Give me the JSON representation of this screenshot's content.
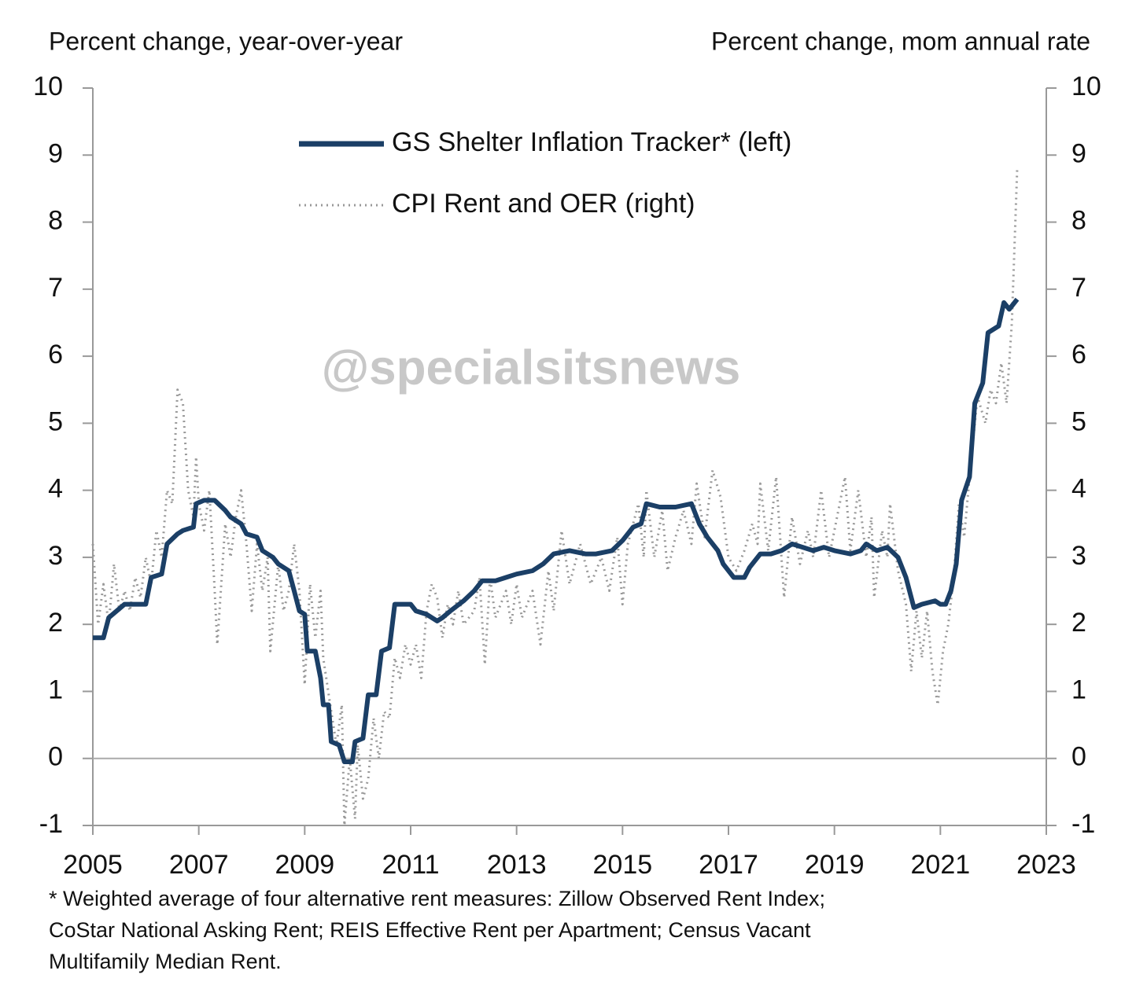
{
  "chart_data": {
    "type": "line",
    "y_label": "Percent change, year-over-year",
    "y2_label": "Percent change, mom annual rate",
    "annotation": "@specialsitsnews",
    "footnote": [
      "* Weighted  average of four alternative  rent measures: Zillow Observed Rent  Index;",
      "CoStar National  Asking Rent;  REIS  Effective Rent per Apartment;  Census Vacant",
      "Multifamily  Median  Rent."
    ],
    "xlim": [
      2005,
      2023
    ],
    "xticks": [
      2005,
      2007,
      2009,
      2011,
      2013,
      2015,
      2017,
      2019,
      2021,
      2023
    ],
    "ylim": [
      -1,
      10
    ],
    "yticks": [
      -1,
      0,
      1,
      2,
      3,
      4,
      5,
      6,
      7,
      8,
      9,
      10
    ],
    "y2lim": [
      -1,
      10
    ],
    "y2ticks": [
      -1,
      0,
      1,
      2,
      3,
      4,
      5,
      6,
      7,
      8,
      9,
      10
    ],
    "legend": "top",
    "series": [
      {
        "name": "GS Shelter Inflation Tracker* (left)",
        "color": "#1b3f66",
        "axis": "y",
        "x": [
          2005.0,
          2005.2,
          2005.3,
          2005.6,
          2005.9,
          2006.0,
          2006.1,
          2006.3,
          2006.4,
          2006.6,
          2006.7,
          2006.9,
          2006.95,
          2007.1,
          2007.3,
          2007.5,
          2007.6,
          2007.8,
          2007.9,
          2008.1,
          2008.2,
          2008.4,
          2008.5,
          2008.7,
          2008.8,
          2008.9,
          2009.0,
          2009.05,
          2009.2,
          2009.3,
          2009.35,
          2009.45,
          2009.5,
          2009.65,
          2009.75,
          2009.9,
          2009.95,
          2010.1,
          2010.2,
          2010.35,
          2010.45,
          2010.6,
          2010.7,
          2011.0,
          2011.1,
          2011.3,
          2011.5,
          2011.6,
          2011.75,
          2012.0,
          2012.2,
          2012.35,
          2012.6,
          2012.8,
          2013.0,
          2013.3,
          2013.5,
          2013.7,
          2014.0,
          2014.3,
          2014.5,
          2014.8,
          2015.0,
          2015.2,
          2015.35,
          2015.45,
          2015.7,
          2016.0,
          2016.3,
          2016.45,
          2016.6,
          2016.8,
          2016.9,
          2017.1,
          2017.3,
          2017.4,
          2017.6,
          2017.8,
          2018.0,
          2018.2,
          2018.4,
          2018.6,
          2018.8,
          2019.0,
          2019.3,
          2019.5,
          2019.6,
          2019.8,
          2020.0,
          2020.2,
          2020.35,
          2020.5,
          2020.65,
          2020.9,
          2021.0,
          2021.1,
          2021.2,
          2021.3,
          2021.4,
          2021.55,
          2021.65,
          2021.8,
          2021.9,
          2022.1,
          2022.2,
          2022.3,
          2022.45
        ],
        "values": [
          1.8,
          1.8,
          2.1,
          2.3,
          2.3,
          2.3,
          2.7,
          2.75,
          3.2,
          3.35,
          3.4,
          3.45,
          3.8,
          3.85,
          3.85,
          3.7,
          3.6,
          3.5,
          3.35,
          3.3,
          3.1,
          3.0,
          2.9,
          2.8,
          2.5,
          2.2,
          2.15,
          1.6,
          1.6,
          1.2,
          0.8,
          0.8,
          0.25,
          0.2,
          -0.05,
          -0.05,
          0.25,
          0.3,
          0.95,
          0.95,
          1.6,
          1.65,
          2.3,
          2.3,
          2.2,
          2.15,
          2.05,
          2.1,
          2.2,
          2.35,
          2.5,
          2.65,
          2.65,
          2.7,
          2.75,
          2.8,
          2.9,
          3.05,
          3.1,
          3.05,
          3.05,
          3.1,
          3.25,
          3.45,
          3.5,
          3.8,
          3.75,
          3.75,
          3.8,
          3.5,
          3.3,
          3.1,
          2.9,
          2.7,
          2.7,
          2.85,
          3.05,
          3.05,
          3.1,
          3.2,
          3.15,
          3.1,
          3.15,
          3.1,
          3.05,
          3.1,
          3.2,
          3.1,
          3.15,
          3.0,
          2.7,
          2.25,
          2.3,
          2.35,
          2.3,
          2.3,
          2.5,
          2.9,
          3.85,
          4.2,
          5.3,
          5.6,
          6.35,
          6.45,
          6.8,
          6.7,
          6.85
        ]
      },
      {
        "name": "CPI Rent and OER (right)",
        "color": "#999999",
        "axis": "y2",
        "x": [
          2005.0,
          2005.1,
          2005.2,
          2005.3,
          2005.4,
          2005.5,
          2005.6,
          2005.7,
          2005.8,
          2005.9,
          2006.0,
          2006.1,
          2006.2,
          2006.3,
          2006.4,
          2006.5,
          2006.6,
          2006.7,
          2006.8,
          2006.9,
          2006.95,
          2007.0,
          2007.1,
          2007.2,
          2007.3,
          2007.35,
          2007.5,
          2007.6,
          2007.7,
          2007.8,
          2007.9,
          2008.0,
          2008.1,
          2008.2,
          2008.3,
          2008.35,
          2008.5,
          2008.6,
          2008.7,
          2008.8,
          2008.9,
          2009.0,
          2009.1,
          2009.2,
          2009.3,
          2009.35,
          2009.5,
          2009.6,
          2009.7,
          2009.75,
          2009.85,
          2009.95,
          2010.0,
          2010.1,
          2010.2,
          2010.3,
          2010.4,
          2010.5,
          2010.6,
          2010.7,
          2010.8,
          2010.9,
          2011.0,
          2011.1,
          2011.2,
          2011.3,
          2011.4,
          2011.5,
          2011.6,
          2011.7,
          2011.8,
          2011.9,
          2012.0,
          2012.2,
          2012.3,
          2012.4,
          2012.5,
          2012.6,
          2012.8,
          2012.9,
          2013.0,
          2013.1,
          2013.3,
          2013.45,
          2013.6,
          2013.7,
          2013.85,
          2014.0,
          2014.2,
          2014.4,
          2014.6,
          2014.75,
          2014.9,
          2015.0,
          2015.1,
          2015.3,
          2015.4,
          2015.45,
          2015.6,
          2015.75,
          2015.85,
          2016.0,
          2016.15,
          2016.3,
          2016.4,
          2016.55,
          2016.7,
          2016.85,
          2017.0,
          2017.15,
          2017.3,
          2017.45,
          2017.55,
          2017.6,
          2017.75,
          2017.9,
          2018.05,
          2018.2,
          2018.35,
          2018.5,
          2018.6,
          2018.75,
          2018.9,
          2019.05,
          2019.2,
          2019.3,
          2019.45,
          2019.6,
          2019.7,
          2019.75,
          2019.9,
          2020.0,
          2020.05,
          2020.2,
          2020.35,
          2020.45,
          2020.55,
          2020.65,
          2020.75,
          2020.85,
          2020.95,
          2021.05,
          2021.15,
          2021.25,
          2021.35,
          2021.45,
          2021.55,
          2021.7,
          2021.85,
          2021.95,
          2022.05,
          2022.15,
          2022.25,
          2022.35,
          2022.45
        ],
        "values": [
          3.2,
          2.0,
          2.6,
          2.0,
          2.9,
          2.2,
          2.5,
          2.2,
          2.7,
          2.4,
          3.0,
          2.6,
          3.4,
          3.0,
          4.0,
          3.8,
          5.5,
          5.3,
          4.0,
          3.6,
          4.5,
          3.8,
          3.4,
          4.0,
          2.5,
          1.7,
          3.5,
          3.0,
          3.6,
          4.0,
          3.2,
          2.2,
          3.2,
          2.5,
          3.0,
          1.6,
          2.9,
          2.2,
          2.5,
          3.2,
          2.5,
          1.1,
          2.6,
          1.8,
          2.5,
          1.5,
          0.7,
          0.2,
          0.8,
          -1.0,
          0.0,
          -0.9,
          0.2,
          -0.6,
          -0.3,
          0.6,
          0.0,
          0.7,
          0.6,
          1.5,
          1.2,
          1.7,
          1.4,
          1.7,
          1.2,
          2.2,
          2.6,
          2.4,
          1.8,
          2.3,
          2.0,
          2.5,
          2.0,
          2.2,
          2.7,
          1.4,
          2.7,
          2.1,
          2.5,
          2.0,
          2.6,
          2.1,
          2.5,
          1.7,
          2.8,
          2.2,
          3.4,
          2.6,
          3.2,
          2.6,
          3.0,
          2.5,
          3.3,
          2.3,
          3.2,
          3.8,
          3.0,
          4.0,
          3.0,
          3.7,
          2.8,
          3.3,
          3.7,
          3.2,
          4.1,
          3.3,
          4.3,
          3.9,
          3.0,
          2.8,
          3.1,
          3.5,
          3.2,
          4.1,
          3.1,
          4.2,
          2.4,
          3.6,
          2.9,
          3.4,
          3.0,
          4.0,
          3.0,
          3.6,
          4.2,
          3.1,
          4.0,
          3.0,
          3.6,
          2.4,
          3.4,
          3.0,
          3.8,
          2.8,
          2.3,
          1.3,
          2.2,
          1.5,
          2.2,
          1.3,
          0.8,
          1.6,
          2.0,
          2.7,
          3.8,
          3.3,
          4.2,
          5.4,
          5.0,
          5.5,
          5.3,
          5.9,
          5.3,
          6.5,
          8.8
        ]
      }
    ]
  }
}
